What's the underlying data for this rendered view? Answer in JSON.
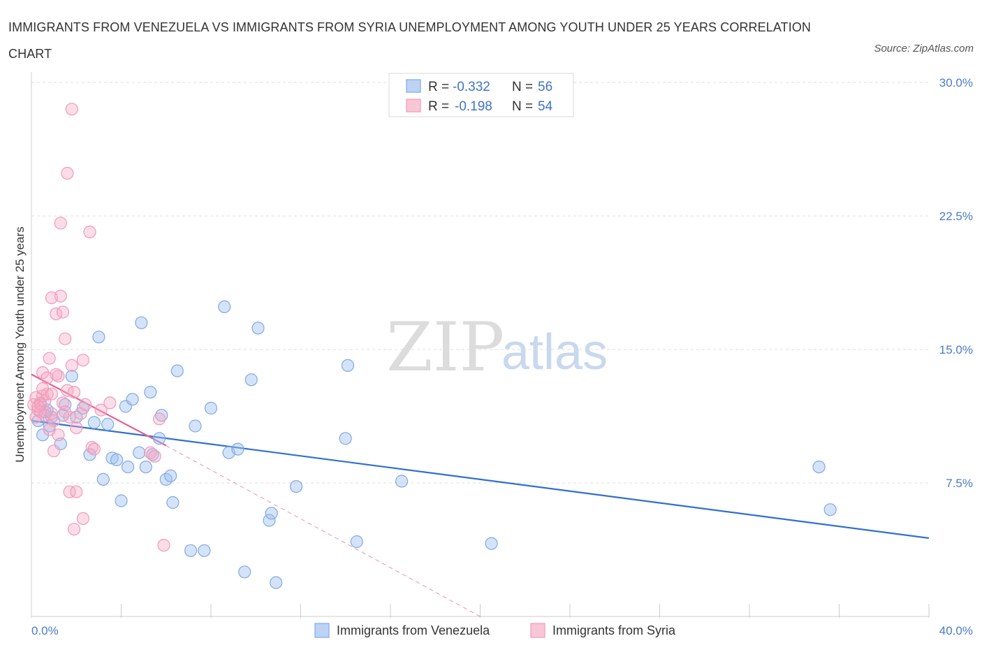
{
  "header": {
    "title": "IMMIGRANTS FROM VENEZUELA VS IMMIGRANTS FROM SYRIA UNEMPLOYMENT AMONG YOUTH UNDER 25 YEARS CORRELATION CHART",
    "source": "Source: ZipAtlas.com"
  },
  "watermark": {
    "zip": "ZIP",
    "atlas": "atlas"
  },
  "legend": {
    "r_label": "R =",
    "n_label": "N =",
    "entries": [
      {
        "name": "Immigrants from Venezuela",
        "r": "-0.332",
        "n": "56",
        "color": "#7fa9e8"
      },
      {
        "name": "Immigrants from Syria",
        "r": "-0.198",
        "n": "54",
        "color": "#f29ab8"
      }
    ]
  },
  "chart_data": {
    "type": "scatter",
    "title": "IMMIGRANTS FROM VENEZUELA VS IMMIGRANTS FROM SYRIA UNEMPLOYMENT AMONG YOUTH UNDER 25 YEARS CORRELATION CHART",
    "xlabel": "",
    "ylabel": "Unemployment Among Youth under 25 years",
    "xlim": [
      0,
      40
    ],
    "ylim": [
      0,
      30
    ],
    "x_tick_labels": [
      "0.0%",
      "40.0%"
    ],
    "y_ticks": [
      7.5,
      15.0,
      22.5,
      30.0
    ],
    "y_tick_labels": [
      "7.5%",
      "15.0%",
      "22.5%",
      "30.0%"
    ],
    "grid": true,
    "legend_position": "top-center",
    "series": [
      {
        "name": "Immigrants from Venezuela",
        "color": "#7fa9e8",
        "line_color": "#2f6fd0",
        "trend": {
          "x": [
            0,
            40
          ],
          "y": [
            11.0,
            4.4
          ]
        },
        "points": [
          [
            0.3,
            11.0
          ],
          [
            0.5,
            10.2
          ],
          [
            0.6,
            11.5
          ],
          [
            0.8,
            10.7
          ],
          [
            0.9,
            11.2
          ],
          [
            1.3,
            9.7
          ],
          [
            1.4,
            11.3
          ],
          [
            1.5,
            11.9
          ],
          [
            1.8,
            13.5
          ],
          [
            2.0,
            11.2
          ],
          [
            2.3,
            11.7
          ],
          [
            2.6,
            9.1
          ],
          [
            2.8,
            10.9
          ],
          [
            3.0,
            15.7
          ],
          [
            3.2,
            7.7
          ],
          [
            3.4,
            10.8
          ],
          [
            3.6,
            8.9
          ],
          [
            3.8,
            8.8
          ],
          [
            4.0,
            6.5
          ],
          [
            4.2,
            11.8
          ],
          [
            4.3,
            8.4
          ],
          [
            4.5,
            12.2
          ],
          [
            4.8,
            9.2
          ],
          [
            4.9,
            16.5
          ],
          [
            5.1,
            8.4
          ],
          [
            5.3,
            12.6
          ],
          [
            5.4,
            9.1
          ],
          [
            5.7,
            10.0
          ],
          [
            5.8,
            11.3
          ],
          [
            6.0,
            7.7
          ],
          [
            6.2,
            7.9
          ],
          [
            6.3,
            6.4
          ],
          [
            6.5,
            13.8
          ],
          [
            7.1,
            3.7
          ],
          [
            7.3,
            10.7
          ],
          [
            7.7,
            3.7
          ],
          [
            8.0,
            11.7
          ],
          [
            8.6,
            17.4
          ],
          [
            8.8,
            9.2
          ],
          [
            9.2,
            9.4
          ],
          [
            9.5,
            2.5
          ],
          [
            9.8,
            13.3
          ],
          [
            10.1,
            16.2
          ],
          [
            10.6,
            5.4
          ],
          [
            10.7,
            5.8
          ],
          [
            10.9,
            1.9
          ],
          [
            11.8,
            7.3
          ],
          [
            14.0,
            10.0
          ],
          [
            14.1,
            14.1
          ],
          [
            14.5,
            4.2
          ],
          [
            16.5,
            7.6
          ],
          [
            20.5,
            4.1
          ],
          [
            35.1,
            8.4
          ],
          [
            35.6,
            6.0
          ],
          [
            0.4,
            11.9
          ],
          [
            0.7,
            11.6
          ]
        ]
      },
      {
        "name": "Immigrants from Syria",
        "color": "#f29ab8",
        "line_color": "#e8608f",
        "trend": {
          "x": [
            0,
            6.0
          ],
          "y": [
            13.6,
            9.6
          ]
        },
        "trend_extension": {
          "x": [
            6.0,
            20.0
          ],
          "y": [
            9.6,
            0.0
          ]
        },
        "points": [
          [
            0.1,
            11.9
          ],
          [
            0.2,
            12.3
          ],
          [
            0.2,
            11.2
          ],
          [
            0.3,
            11.6
          ],
          [
            0.4,
            12.0
          ],
          [
            0.4,
            11.5
          ],
          [
            0.5,
            12.4
          ],
          [
            0.5,
            13.7
          ],
          [
            0.6,
            11.3
          ],
          [
            0.6,
            12.1
          ],
          [
            0.7,
            12.5
          ],
          [
            0.7,
            13.4
          ],
          [
            0.8,
            14.5
          ],
          [
            0.9,
            11.4
          ],
          [
            0.9,
            17.9
          ],
          [
            1.0,
            9.3
          ],
          [
            1.0,
            11.0
          ],
          [
            1.1,
            17.0
          ],
          [
            1.2,
            13.5
          ],
          [
            1.2,
            10.2
          ],
          [
            1.3,
            22.1
          ],
          [
            1.4,
            17.1
          ],
          [
            1.4,
            12.0
          ],
          [
            1.5,
            15.6
          ],
          [
            1.5,
            11.5
          ],
          [
            1.6,
            24.9
          ],
          [
            1.6,
            12.7
          ],
          [
            1.7,
            7.0
          ],
          [
            1.7,
            11.2
          ],
          [
            1.8,
            28.5
          ],
          [
            1.8,
            14.1
          ],
          [
            1.9,
            12.6
          ],
          [
            1.9,
            4.9
          ],
          [
            2.0,
            7.0
          ],
          [
            2.0,
            10.6
          ],
          [
            2.2,
            11.4
          ],
          [
            2.3,
            14.4
          ],
          [
            2.3,
            5.5
          ],
          [
            2.4,
            11.9
          ],
          [
            2.6,
            21.6
          ],
          [
            2.7,
            9.5
          ],
          [
            2.8,
            9.4
          ],
          [
            3.1,
            11.6
          ],
          [
            3.5,
            12.0
          ],
          [
            5.3,
            9.2
          ],
          [
            5.5,
            9.0
          ],
          [
            5.7,
            11.1
          ],
          [
            5.9,
            4.0
          ],
          [
            0.3,
            11.8
          ],
          [
            0.8,
            10.5
          ],
          [
            1.1,
            13.6
          ],
          [
            0.5,
            12.8
          ],
          [
            1.3,
            18.0
          ],
          [
            0.9,
            12.5
          ]
        ]
      }
    ]
  }
}
